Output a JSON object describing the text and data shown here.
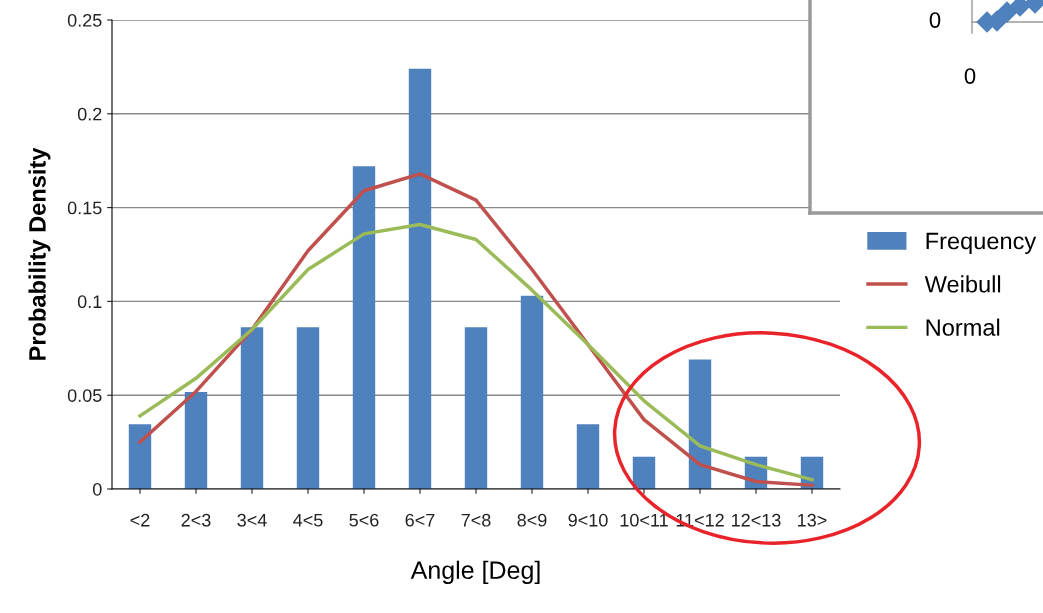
{
  "chart_data": [
    {
      "type": "bar",
      "xlabel": "Angle [Deg]",
      "ylabel": "Probability Density",
      "categories": [
        "<2",
        "2<3",
        "3<4",
        "4<5",
        "5<6",
        "6<7",
        "7<8",
        "8<9",
        "9<10",
        "10<11",
        "11<12",
        "12<13",
        "13>"
      ],
      "series": [
        {
          "name": "Frequency",
          "color": "#4f81bd",
          "values": [
            0.0345,
            0.0517,
            0.0862,
            0.0862,
            0.172,
            0.224,
            0.0862,
            0.103,
            0.0345,
            0.0172,
            0.069,
            0.0172,
            0.0172
          ]
        },
        {
          "name": "Weibull",
          "type": "line",
          "color": "#c0504d",
          "values": [
            0.025,
            0.052,
            0.085,
            0.127,
            0.159,
            0.168,
            0.154,
            0.117,
            0.077,
            0.037,
            0.013,
            0.004,
            0.002
          ]
        },
        {
          "name": "Normal",
          "type": "line",
          "color": "#9bbb59",
          "values": [
            0.039,
            0.059,
            0.085,
            0.117,
            0.136,
            0.141,
            0.133,
            0.106,
            0.077,
            0.047,
            0.023,
            0.013,
            0.005
          ]
        }
      ],
      "ylim": [
        0,
        0.25
      ],
      "yticks": [
        0,
        0.05,
        0.1,
        0.15,
        0.2,
        0.25
      ],
      "grid": "y",
      "legend": "right",
      "marker": "none",
      "line_style": "solid"
    },
    {
      "type": "other",
      "annotations": [
        "0",
        "0"
      ]
    }
  ]
}
